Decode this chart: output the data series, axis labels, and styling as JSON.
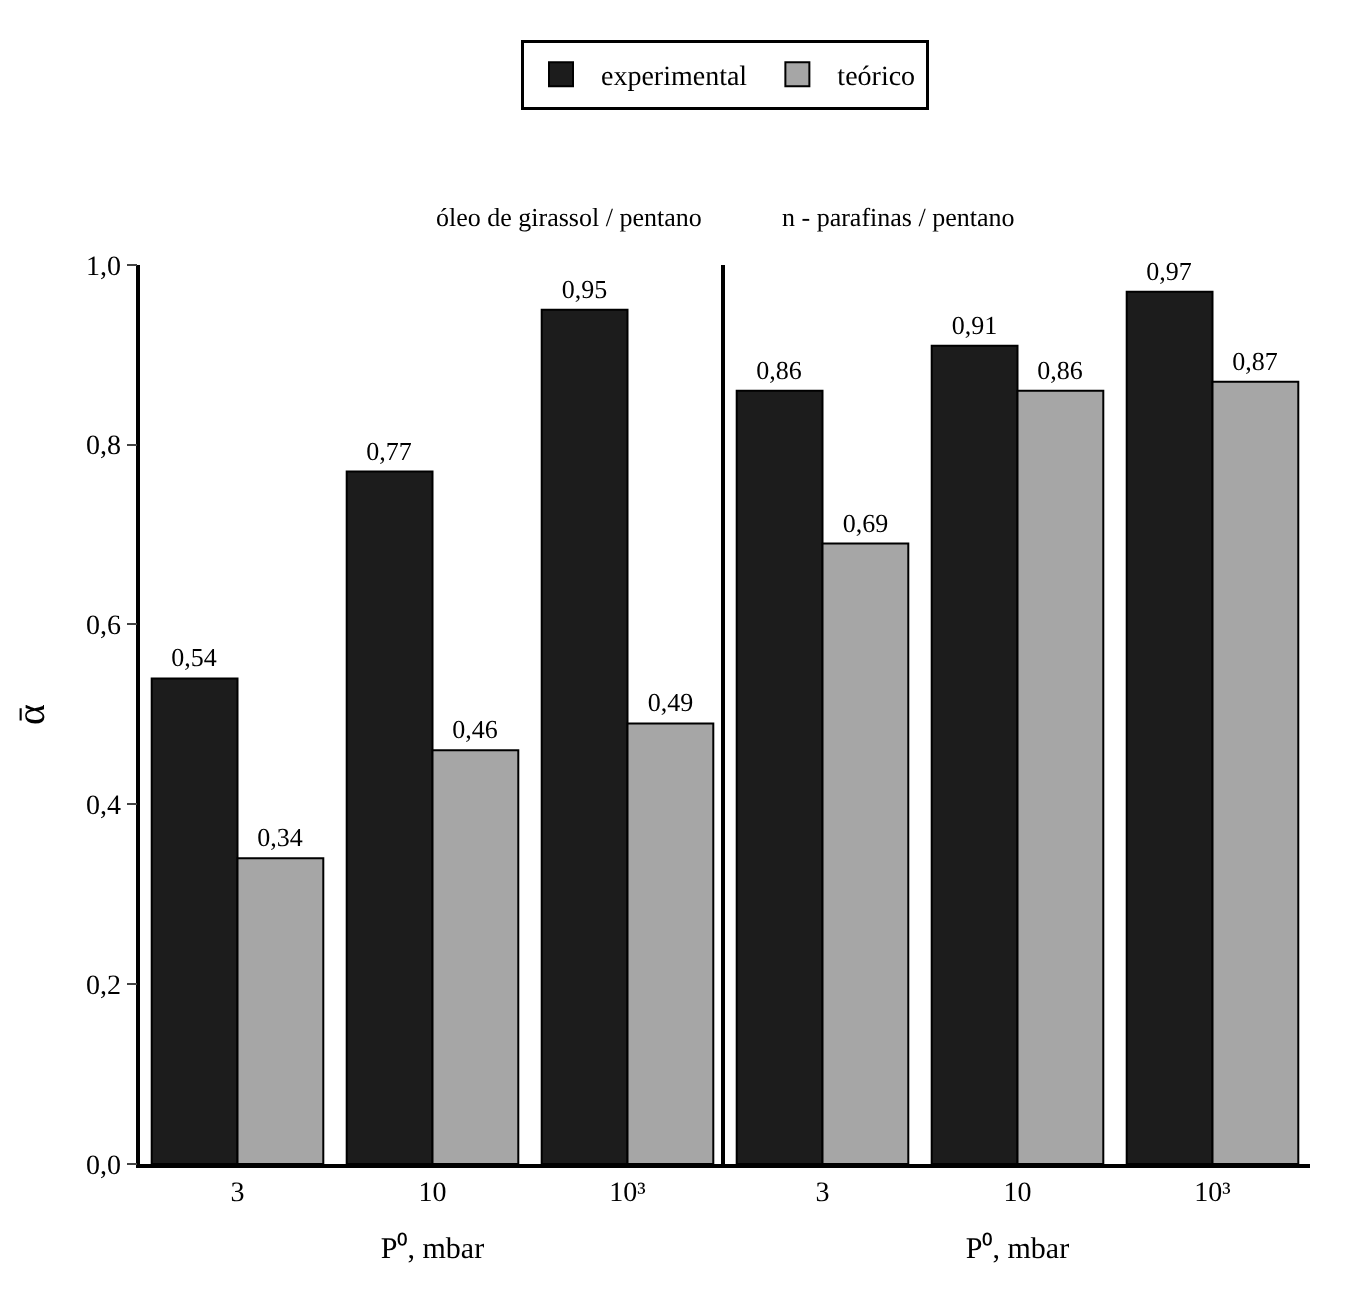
{
  "chart_data": [
    {
      "type": "bar",
      "title": "óleo de girassol / pentano",
      "xlabel": "P⁰, mbar",
      "ylabel": "ᾱ",
      "categories": [
        "3",
        "10",
        "10³"
      ],
      "series": [
        {
          "name": "experimental",
          "color": "#1c1c1c",
          "values": [
            0.54,
            0.77,
            0.95
          ],
          "value_labels": [
            "0,54",
            "0,77",
            "0,95"
          ]
        },
        {
          "name": "teórico",
          "color": "#a6a6a6",
          "values": [
            0.34,
            0.46,
            0.49
          ],
          "value_labels": [
            "0,34",
            "0,46",
            "0,49"
          ]
        }
      ],
      "ylim": [
        0,
        1.0
      ],
      "yticks": [
        {
          "value": 0,
          "label": "0,0"
        },
        {
          "value": 0.2,
          "label": "0,2"
        },
        {
          "value": 0.4,
          "label": "0,4"
        },
        {
          "value": 0.6,
          "label": "0,6"
        },
        {
          "value": 0.8,
          "label": "0,8"
        },
        {
          "value": 1.0,
          "label": "1,0"
        }
      ],
      "legend": "top"
    },
    {
      "type": "bar",
      "title": "n - parafinas / pentano",
      "xlabel": "P⁰, mbar",
      "categories": [
        "3",
        "10",
        "10³"
      ],
      "series": [
        {
          "name": "experimental",
          "color": "#1c1c1c",
          "values": [
            0.86,
            0.91,
            0.97
          ],
          "value_labels": [
            "0,86",
            "0,91",
            "0,97"
          ]
        },
        {
          "name": "teórico",
          "color": "#a6a6a6",
          "values": [
            0.69,
            0.86,
            0.87
          ],
          "value_labels": [
            "0,69",
            "0,86",
            "0,87"
          ]
        }
      ],
      "ylim": [
        0,
        1.0
      ],
      "legend": "top",
      "tick_labels": "x"
    }
  ]
}
